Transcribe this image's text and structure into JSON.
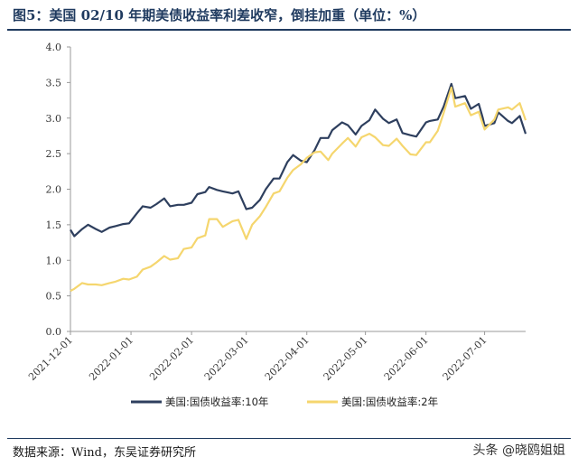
{
  "title": "图5：美国 02/10 年期美债收益率利差收窄，倒挂加重（单位：%）",
  "source": "数据来源：Wind，东吴证券研究所",
  "watermark": "头条 @晓鸥姐姐",
  "chart_data": {
    "type": "line",
    "x_ticks": [
      "2021-12-01",
      "2022-01-01",
      "2022-02-01",
      "2022-03-01",
      "2022-04-01",
      "2022-05-01",
      "2022-06-01",
      "2022-07-01"
    ],
    "x_range": [
      "2021-12-01",
      "2022-07-22"
    ],
    "ylim": [
      0,
      4.0
    ],
    "y_ticks": [
      "0.0",
      "0.5",
      "1.0",
      "1.5",
      "2.0",
      "2.5",
      "3.0",
      "3.5",
      "4.0"
    ],
    "legend_position": "bottom",
    "series": [
      {
        "name": "美国:国债收益率:10年",
        "color": "#2e3f5e",
        "points": [
          [
            "2021-12-01",
            1.43
          ],
          [
            "2021-12-03",
            1.34
          ],
          [
            "2021-12-07",
            1.44
          ],
          [
            "2021-12-10",
            1.5
          ],
          [
            "2021-12-14",
            1.44
          ],
          [
            "2021-12-17",
            1.4
          ],
          [
            "2021-12-21",
            1.46
          ],
          [
            "2021-12-24",
            1.48
          ],
          [
            "2021-12-28",
            1.51
          ],
          [
            "2021-12-31",
            1.52
          ],
          [
            "2022-01-04",
            1.66
          ],
          [
            "2022-01-07",
            1.76
          ],
          [
            "2022-01-11",
            1.74
          ],
          [
            "2022-01-14",
            1.79
          ],
          [
            "2022-01-18",
            1.87
          ],
          [
            "2022-01-21",
            1.76
          ],
          [
            "2022-01-25",
            1.78
          ],
          [
            "2022-01-28",
            1.78
          ],
          [
            "2022-02-01",
            1.81
          ],
          [
            "2022-02-04",
            1.93
          ],
          [
            "2022-02-08",
            1.96
          ],
          [
            "2022-02-10",
            2.03
          ],
          [
            "2022-02-14",
            1.99
          ],
          [
            "2022-02-17",
            1.97
          ],
          [
            "2022-02-22",
            1.94
          ],
          [
            "2022-02-25",
            1.97
          ],
          [
            "2022-03-01",
            1.72
          ],
          [
            "2022-03-04",
            1.74
          ],
          [
            "2022-03-08",
            1.85
          ],
          [
            "2022-03-11",
            2.0
          ],
          [
            "2022-03-15",
            2.15
          ],
          [
            "2022-03-18",
            2.15
          ],
          [
            "2022-03-22",
            2.38
          ],
          [
            "2022-03-25",
            2.48
          ],
          [
            "2022-03-29",
            2.4
          ],
          [
            "2022-04-01",
            2.38
          ],
          [
            "2022-04-05",
            2.55
          ],
          [
            "2022-04-08",
            2.72
          ],
          [
            "2022-04-12",
            2.72
          ],
          [
            "2022-04-14",
            2.83
          ],
          [
            "2022-04-19",
            2.94
          ],
          [
            "2022-04-22",
            2.9
          ],
          [
            "2022-04-26",
            2.77
          ],
          [
            "2022-04-29",
            2.89
          ],
          [
            "2022-05-03",
            2.97
          ],
          [
            "2022-05-06",
            3.12
          ],
          [
            "2022-05-10",
            2.99
          ],
          [
            "2022-05-13",
            2.93
          ],
          [
            "2022-05-17",
            2.98
          ],
          [
            "2022-05-20",
            2.79
          ],
          [
            "2022-05-24",
            2.76
          ],
          [
            "2022-05-27",
            2.74
          ],
          [
            "2022-06-01",
            2.94
          ],
          [
            "2022-06-03",
            2.96
          ],
          [
            "2022-06-07",
            2.98
          ],
          [
            "2022-06-10",
            3.16
          ],
          [
            "2022-06-14",
            3.48
          ],
          [
            "2022-06-16",
            3.28
          ],
          [
            "2022-06-21",
            3.31
          ],
          [
            "2022-06-24",
            3.13
          ],
          [
            "2022-06-28",
            3.2
          ],
          [
            "2022-06-30",
            3.01
          ],
          [
            "2022-07-01",
            2.89
          ],
          [
            "2022-07-06",
            2.93
          ],
          [
            "2022-07-08",
            3.08
          ],
          [
            "2022-07-13",
            2.96
          ],
          [
            "2022-07-15",
            2.93
          ],
          [
            "2022-07-19",
            3.03
          ],
          [
            "2022-07-22",
            2.78
          ]
        ]
      },
      {
        "name": "美国:国债收益率:2年",
        "color": "#f5d66e",
        "points": [
          [
            "2021-12-01",
            0.57
          ],
          [
            "2021-12-03",
            0.6
          ],
          [
            "2021-12-07",
            0.68
          ],
          [
            "2021-12-10",
            0.66
          ],
          [
            "2021-12-14",
            0.66
          ],
          [
            "2021-12-17",
            0.65
          ],
          [
            "2021-12-21",
            0.68
          ],
          [
            "2021-12-24",
            0.7
          ],
          [
            "2021-12-28",
            0.74
          ],
          [
            "2021-12-31",
            0.73
          ],
          [
            "2022-01-04",
            0.77
          ],
          [
            "2022-01-07",
            0.87
          ],
          [
            "2022-01-11",
            0.91
          ],
          [
            "2022-01-14",
            0.97
          ],
          [
            "2022-01-18",
            1.06
          ],
          [
            "2022-01-21",
            1.01
          ],
          [
            "2022-01-25",
            1.03
          ],
          [
            "2022-01-28",
            1.16
          ],
          [
            "2022-02-01",
            1.18
          ],
          [
            "2022-02-04",
            1.31
          ],
          [
            "2022-02-08",
            1.35
          ],
          [
            "2022-02-10",
            1.58
          ],
          [
            "2022-02-14",
            1.58
          ],
          [
            "2022-02-17",
            1.47
          ],
          [
            "2022-02-22",
            1.55
          ],
          [
            "2022-02-25",
            1.57
          ],
          [
            "2022-03-01",
            1.3
          ],
          [
            "2022-03-04",
            1.5
          ],
          [
            "2022-03-08",
            1.62
          ],
          [
            "2022-03-11",
            1.75
          ],
          [
            "2022-03-15",
            1.94
          ],
          [
            "2022-03-18",
            1.97
          ],
          [
            "2022-03-22",
            2.16
          ],
          [
            "2022-03-25",
            2.27
          ],
          [
            "2022-03-29",
            2.35
          ],
          [
            "2022-04-01",
            2.44
          ],
          [
            "2022-04-05",
            2.52
          ],
          [
            "2022-04-08",
            2.53
          ],
          [
            "2022-04-12",
            2.41
          ],
          [
            "2022-04-14",
            2.5
          ],
          [
            "2022-04-19",
            2.64
          ],
          [
            "2022-04-22",
            2.72
          ],
          [
            "2022-04-26",
            2.6
          ],
          [
            "2022-04-29",
            2.73
          ],
          [
            "2022-05-03",
            2.78
          ],
          [
            "2022-05-06",
            2.73
          ],
          [
            "2022-05-10",
            2.62
          ],
          [
            "2022-05-13",
            2.61
          ],
          [
            "2022-05-17",
            2.71
          ],
          [
            "2022-05-20",
            2.61
          ],
          [
            "2022-05-24",
            2.49
          ],
          [
            "2022-05-27",
            2.48
          ],
          [
            "2022-06-01",
            2.66
          ],
          [
            "2022-06-03",
            2.66
          ],
          [
            "2022-06-07",
            2.82
          ],
          [
            "2022-06-10",
            3.07
          ],
          [
            "2022-06-14",
            3.43
          ],
          [
            "2022-06-16",
            3.16
          ],
          [
            "2022-06-21",
            3.21
          ],
          [
            "2022-06-24",
            3.04
          ],
          [
            "2022-06-28",
            3.09
          ],
          [
            "2022-06-30",
            2.92
          ],
          [
            "2022-07-01",
            2.84
          ],
          [
            "2022-07-06",
            2.98
          ],
          [
            "2022-07-08",
            3.12
          ],
          [
            "2022-07-13",
            3.15
          ],
          [
            "2022-07-15",
            3.12
          ],
          [
            "2022-07-19",
            3.21
          ],
          [
            "2022-07-22",
            2.97
          ]
        ]
      }
    ]
  }
}
